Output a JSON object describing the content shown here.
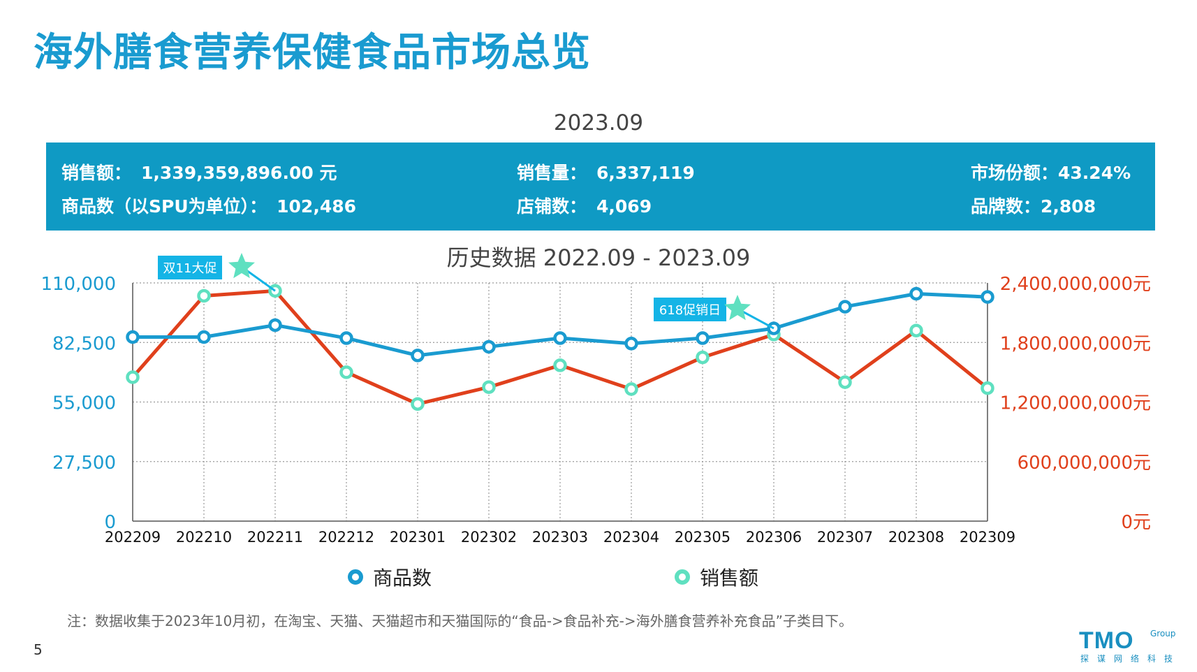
{
  "page": {
    "title": "海外膳食营养保健食品市场总览",
    "period": "2023.09",
    "page_number": "5",
    "note": "注：数据收集于2023年10月初，在淘宝、天猫、天猫超市和天猫国际的“食品->食品补充->海外膳食营养补充食品”子类目下。"
  },
  "summary": {
    "sales_amount": {
      "label": "销售额：",
      "value": "1,339,359,896.00 元"
    },
    "sales_volume": {
      "label": "销售量：",
      "value": "6,337,119"
    },
    "market_share": {
      "label": "市场份额：",
      "value": "43.24%"
    },
    "products": {
      "label": "商品数（以SPU为单位）：",
      "value": "102,486"
    },
    "stores": {
      "label": "店铺数：",
      "value": "4,069"
    },
    "brands": {
      "label": "品牌数：",
      "value": "2,808"
    }
  },
  "logo": {
    "main": "TMO",
    "group": "Group",
    "sub": "探谋网络科技"
  },
  "colors": {
    "blue": "#1a9bd0",
    "red": "#e0401c",
    "mint": "#5fe0c0",
    "header_bg": "#0f9ac4",
    "callout": "#14b4e6"
  },
  "chart_data": {
    "type": "line",
    "title": "历史数据 2022.09 - 2023.09",
    "categories": [
      "202209",
      "202210",
      "202211",
      "202212",
      "202301",
      "202302",
      "202303",
      "202304",
      "202305",
      "202306",
      "202307",
      "202308",
      "202309"
    ],
    "series": [
      {
        "name": "商品数",
        "axis": "left",
        "color": "#1a9bd0",
        "values": [
          85000,
          85000,
          90500,
          84500,
          76500,
          80500,
          84500,
          82000,
          84500,
          89000,
          99000,
          105000,
          103500
        ]
      },
      {
        "name": "销售额",
        "axis": "right",
        "color": "#e0401c",
        "values": [
          1450000000,
          2270000000,
          2320000000,
          1500000000,
          1180000000,
          1350000000,
          1570000000,
          1330000000,
          1650000000,
          1880000000,
          1400000000,
          1920000000,
          1340000000
        ]
      }
    ],
    "y_left": {
      "min": 0,
      "max": 110000,
      "ticks": [
        "0",
        "27,500",
        "55,000",
        "82,500",
        "110,000"
      ]
    },
    "y_right": {
      "min": 0,
      "max": 2400000000,
      "ticks": [
        "0元",
        "600,000,000元",
        "1,200,000,000元",
        "1,800,000,000元",
        "2,400,000,000元"
      ]
    },
    "grid": true,
    "legend_position": "bottom",
    "annotations": [
      {
        "text": "双11大促",
        "category": "202211"
      },
      {
        "text": "618促销日",
        "category": "202306"
      }
    ]
  }
}
